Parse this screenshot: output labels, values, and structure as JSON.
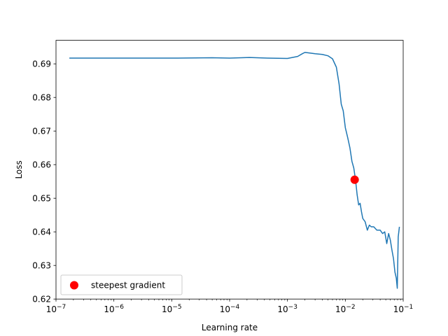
{
  "chart_data": {
    "type": "line",
    "xlabel": "Learning rate",
    "ylabel": "Loss",
    "x_scale": "log",
    "xlim": [
      1e-07,
      0.1
    ],
    "ylim": [
      0.62,
      0.697
    ],
    "x_ticks": [
      {
        "value": 1e-07,
        "base": "10",
        "exp": "−7"
      },
      {
        "value": 1e-06,
        "base": "10",
        "exp": "−6"
      },
      {
        "value": 1e-05,
        "base": "10",
        "exp": "−5"
      },
      {
        "value": 0.0001,
        "base": "10",
        "exp": "−4"
      },
      {
        "value": 0.001,
        "base": "10",
        "exp": "−3"
      },
      {
        "value": 0.01,
        "base": "10",
        "exp": "−2"
      },
      {
        "value": 0.1,
        "base": "10",
        "exp": "−1"
      }
    ],
    "y_ticks": [
      {
        "value": 0.62,
        "label": "0.62"
      },
      {
        "value": 0.63,
        "label": "0.63"
      },
      {
        "value": 0.64,
        "label": "0.64"
      },
      {
        "value": 0.65,
        "label": "0.65"
      },
      {
        "value": 0.66,
        "label": "0.66"
      },
      {
        "value": 0.67,
        "label": "0.67"
      },
      {
        "value": 0.68,
        "label": "0.68"
      },
      {
        "value": 0.69,
        "label": "0.69"
      }
    ],
    "grid": false,
    "legend_position": "lower-left",
    "series": [
      {
        "color": "#1f77b4",
        "x": [
          1.7e-07,
          1e-06,
          1e-05,
          5e-05,
          0.0001,
          0.00022,
          0.00045,
          0.001,
          0.0015,
          0.0018,
          0.002,
          0.0025,
          0.003,
          0.004,
          0.005,
          0.006,
          0.007,
          0.0078,
          0.0085,
          0.0092,
          0.01,
          0.011,
          0.012,
          0.013,
          0.014,
          0.015,
          0.016,
          0.017,
          0.018,
          0.019,
          0.02,
          0.022,
          0.024,
          0.026,
          0.028,
          0.031,
          0.035,
          0.04,
          0.044,
          0.048,
          0.052,
          0.056,
          0.06,
          0.064,
          0.068,
          0.072,
          0.076,
          0.079,
          0.082,
          0.086
        ],
        "y": [
          0.6917,
          0.6917,
          0.6917,
          0.6918,
          0.6917,
          0.6919,
          0.6917,
          0.6916,
          0.6922,
          0.693,
          0.6934,
          0.6932,
          0.693,
          0.6928,
          0.6924,
          0.6915,
          0.689,
          0.684,
          0.678,
          0.676,
          0.671,
          0.668,
          0.665,
          0.661,
          0.659,
          0.6555,
          0.651,
          0.648,
          0.6485,
          0.646,
          0.644,
          0.643,
          0.6405,
          0.642,
          0.6415,
          0.6415,
          0.6405,
          0.6405,
          0.6395,
          0.64,
          0.6365,
          0.6395,
          0.6375,
          0.6345,
          0.632,
          0.628,
          0.6262,
          0.6232,
          0.6385,
          0.6415
        ]
      }
    ],
    "marker": {
      "label": "steepest gradient",
      "x": 0.0145,
      "y": 0.6555,
      "color": "#ff0000"
    }
  }
}
